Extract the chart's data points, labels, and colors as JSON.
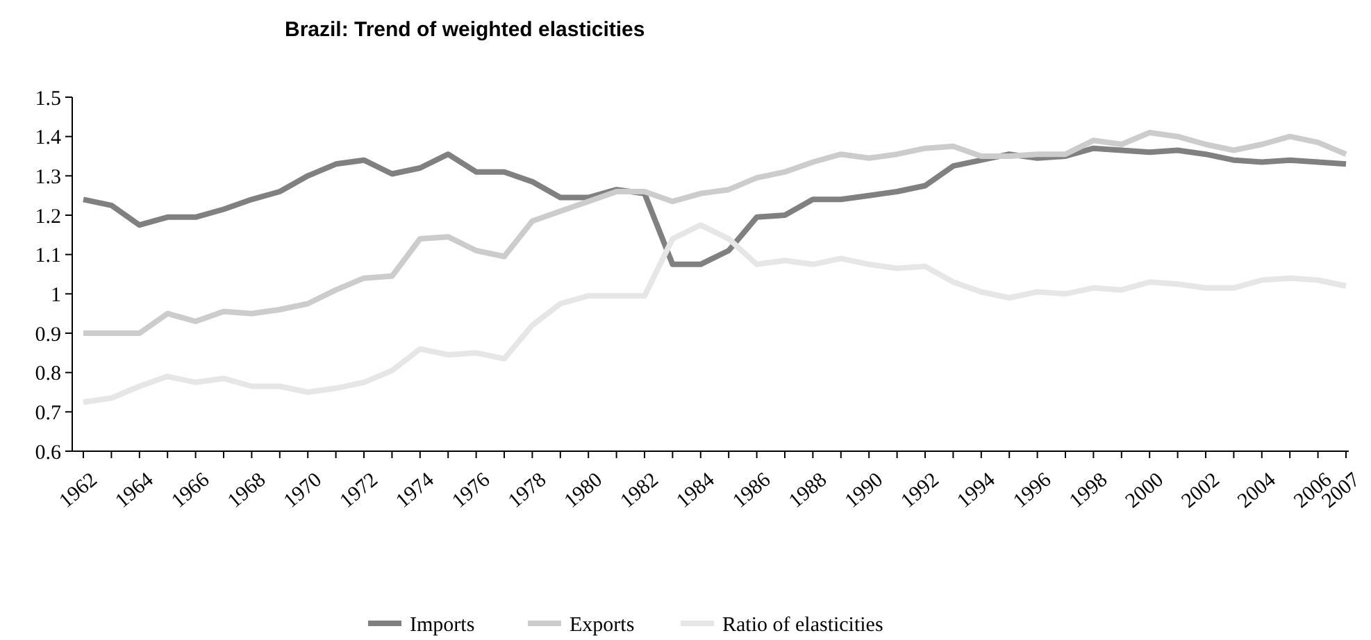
{
  "chart_data": {
    "type": "line",
    "title": "Brazil: Trend of weighted elasticities",
    "categories": [
      "1962",
      null,
      "1964",
      null,
      "1966",
      null,
      "1968",
      null,
      "1970",
      null,
      "1972",
      null,
      "1974",
      null,
      "1976",
      null,
      "1978",
      null,
      "1980",
      null,
      "1982",
      null,
      "1984",
      null,
      "1986",
      null,
      "1988",
      null,
      "1990",
      null,
      "1992",
      null,
      "1994",
      null,
      "1996",
      null,
      "1998",
      null,
      "2000",
      null,
      "2002",
      null,
      "2004",
      null,
      "2006",
      "2007"
    ],
    "series": [
      {
        "name": "Imports",
        "color": "#808080",
        "values": [
          1.24,
          1.225,
          1.175,
          1.195,
          1.195,
          1.215,
          1.24,
          1.26,
          1.3,
          1.33,
          1.34,
          1.305,
          1.32,
          1.355,
          1.31,
          1.31,
          1.285,
          1.245,
          1.245,
          1.265,
          1.255,
          1.075,
          1.075,
          1.11,
          1.195,
          1.2,
          1.24,
          1.24,
          1.25,
          1.26,
          1.275,
          1.325,
          1.34,
          1.355,
          1.345,
          1.35,
          1.37,
          1.365,
          1.36,
          1.365,
          1.355,
          1.34,
          1.335,
          1.34,
          1.335,
          1.33
        ]
      },
      {
        "name": "Exports",
        "color": "#cccccc",
        "values": [
          0.9,
          0.9,
          0.9,
          0.95,
          0.93,
          0.955,
          0.95,
          0.96,
          0.975,
          1.01,
          1.04,
          1.045,
          1.14,
          1.145,
          1.11,
          1.095,
          1.185,
          1.21,
          1.235,
          1.26,
          1.26,
          1.235,
          1.255,
          1.265,
          1.295,
          1.31,
          1.335,
          1.355,
          1.345,
          1.355,
          1.37,
          1.375,
          1.35,
          1.35,
          1.355,
          1.355,
          1.39,
          1.38,
          1.41,
          1.4,
          1.38,
          1.365,
          1.38,
          1.4,
          1.385,
          1.355
        ]
      },
      {
        "name": "Ratio of elasticities",
        "color": "#e6e6e6",
        "values": [
          0.725,
          0.735,
          0.765,
          0.79,
          0.775,
          0.785,
          0.765,
          0.765,
          0.75,
          0.76,
          0.775,
          0.805,
          0.86,
          0.845,
          0.85,
          0.835,
          0.92,
          0.975,
          0.995,
          0.995,
          0.995,
          1.14,
          1.175,
          1.14,
          1.075,
          1.085,
          1.075,
          1.09,
          1.075,
          1.065,
          1.07,
          1.03,
          1.005,
          0.99,
          1.005,
          1.0,
          1.015,
          1.01,
          1.03,
          1.025,
          1.015,
          1.015,
          1.035,
          1.04,
          1.035,
          1.02
        ]
      }
    ],
    "ylim": [
      0.6,
      1.5
    ],
    "yticks": [
      0.6,
      0.7,
      0.8,
      0.9,
      1,
      1.1,
      1.2,
      1.3,
      1.4,
      1.5
    ],
    "grid": false,
    "legend": "bottom",
    "marker": "none",
    "line_style": "solid"
  }
}
